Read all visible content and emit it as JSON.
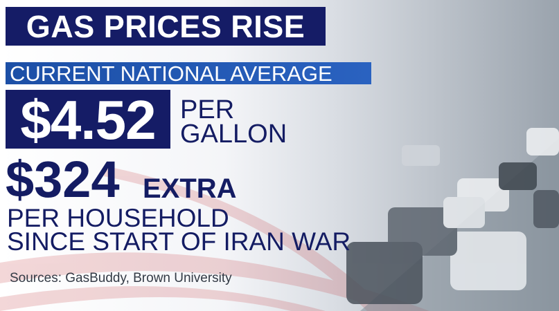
{
  "header": {
    "title": "GAS PRICES RISE",
    "subtitle": "CURRENT NATIONAL AVERAGE"
  },
  "price": {
    "amount": "$4.52",
    "unit_lines": [
      "PER",
      "GALLON"
    ]
  },
  "extra": {
    "amount": "$324",
    "label": "EXTRA",
    "description_lines": [
      "PER HOUSEHOLD",
      "SINCE START OF IRAN WAR"
    ]
  },
  "footer": {
    "sources": "Sources: GasBuddy, Brown University"
  }
}
